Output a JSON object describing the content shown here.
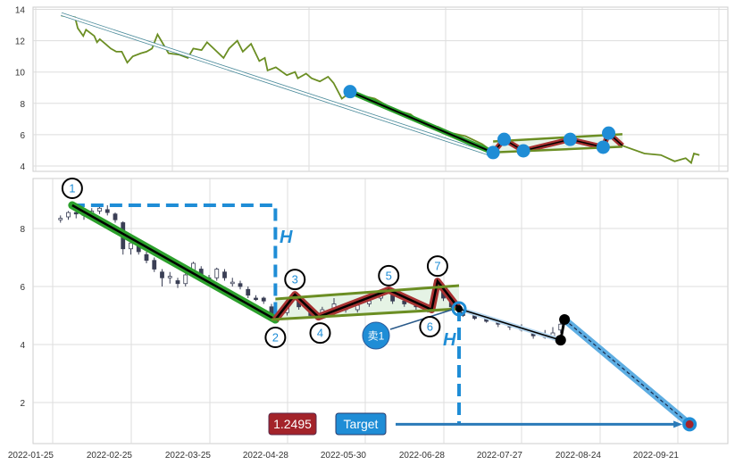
{
  "chart_data": [
    {
      "panel": "overview",
      "type": "line",
      "ylim": [
        4,
        14
      ],
      "yticks": [
        4,
        6,
        8,
        10,
        12,
        14
      ],
      "grid": true,
      "x_unit": "trading-day index",
      "price": [
        [
          -100,
          13.6
        ],
        [
          -95,
          13.5
        ],
        [
          -94,
          12.8
        ],
        [
          -92,
          12.3
        ],
        [
          -91,
          12.7
        ],
        [
          -88,
          12.3
        ],
        [
          -87,
          11.9
        ],
        [
          -86,
          12.1
        ],
        [
          -84,
          11.8
        ],
        [
          -82,
          11.5
        ],
        [
          -80,
          11.3
        ],
        [
          -78,
          11.3
        ],
        [
          -76,
          10.6
        ],
        [
          -74,
          11.0
        ],
        [
          -71,
          11.2
        ],
        [
          -69,
          11.3
        ],
        [
          -67,
          11.5
        ],
        [
          -65,
          12.4
        ],
        [
          -63,
          11.8
        ],
        [
          -61,
          11.2
        ],
        [
          -57,
          11.1
        ],
        [
          -54,
          10.9
        ],
        [
          -52,
          11.5
        ],
        [
          -49,
          11.4
        ],
        [
          -47,
          11.9
        ],
        [
          -44,
          11.4
        ],
        [
          -41,
          10.9
        ],
        [
          -39,
          11.5
        ],
        [
          -36,
          12.0
        ],
        [
          -34,
          11.3
        ],
        [
          -31,
          11.8
        ],
        [
          -28,
          10.7
        ],
        [
          -26,
          10.9
        ],
        [
          -25,
          10.1
        ],
        [
          -22,
          10.3
        ],
        [
          -18,
          9.8
        ],
        [
          -15,
          10.0
        ],
        [
          -14,
          9.6
        ],
        [
          -11,
          9.9
        ],
        [
          -9,
          9.6
        ],
        [
          -6,
          9.4
        ],
        [
          -3,
          9.7
        ],
        [
          -1,
          9.3
        ],
        [
          2,
          8.3
        ],
        [
          5,
          8.7
        ],
        [
          9,
          8.5
        ],
        [
          14,
          8.3
        ],
        [
          21,
          7.6
        ],
        [
          27,
          7.3
        ],
        [
          32,
          6.6
        ],
        [
          37,
          6.5
        ],
        [
          42,
          6.1
        ],
        [
          47,
          5.9
        ],
        [
          53,
          5.4
        ],
        [
          57,
          4.9
        ],
        [
          61,
          5.6
        ],
        [
          68,
          5.0
        ],
        [
          76,
          5.3
        ],
        [
          85,
          5.7
        ],
        [
          97,
          5.2
        ],
        [
          99,
          6.1
        ],
        [
          104,
          5.3
        ],
        [
          112,
          4.8
        ],
        [
          118,
          4.7
        ],
        [
          123,
          4.3
        ],
        [
          127,
          4.5
        ],
        [
          129,
          4.2
        ],
        [
          130,
          4.8
        ],
        [
          132,
          4.7
        ]
      ],
      "trend_arrow": [
        [
          -100,
          13.7
        ],
        [
          56,
          4.75
        ]
      ],
      "pivots": [
        [
          5,
          8.75
        ],
        [
          57,
          4.86
        ],
        [
          61,
          5.7
        ],
        [
          68,
          4.97
        ],
        [
          85,
          5.7
        ],
        [
          97,
          5.2
        ],
        [
          99,
          6.1
        ]
      ]
    },
    {
      "panel": "detail",
      "type": "candlestick",
      "ylim": [
        0.8,
        9.6
      ],
      "yticks": [
        2,
        4,
        6,
        8
      ],
      "grid": true,
      "xticks": [
        "2022-01-25",
        "2022-02-25",
        "2022-03-25",
        "2022-04-28",
        "2022-05-30",
        "2022-06-28",
        "2022-07-27",
        "2022-08-24",
        "2022-09-21"
      ],
      "candles_idx_o_c_h_l": [
        [
          2,
          8.3,
          8.35,
          8.45,
          8.2
        ],
        [
          4,
          8.4,
          8.55,
          8.6,
          8.3
        ],
        [
          6,
          8.55,
          8.5,
          8.65,
          8.35
        ],
        [
          8,
          8.5,
          8.45,
          8.6,
          8.3
        ],
        [
          10,
          8.5,
          8.6,
          8.7,
          8.4
        ],
        [
          12,
          8.6,
          8.7,
          8.75,
          8.5
        ],
        [
          14,
          8.65,
          8.55,
          8.8,
          8.45
        ],
        [
          16,
          8.5,
          8.3,
          8.55,
          8.2
        ],
        [
          18,
          8.2,
          7.3,
          8.25,
          7.1
        ],
        [
          20,
          7.3,
          7.5,
          7.6,
          7.1
        ],
        [
          22,
          7.4,
          7.2,
          7.5,
          7.1
        ],
        [
          24,
          7.1,
          6.9,
          7.2,
          6.8
        ],
        [
          26,
          6.9,
          6.6,
          7.0,
          6.5
        ],
        [
          28,
          6.5,
          6.3,
          6.6,
          6.0
        ],
        [
          30,
          6.3,
          6.35,
          6.5,
          6.1
        ],
        [
          32,
          6.2,
          6.1,
          6.3,
          5.95
        ],
        [
          34,
          6.1,
          6.4,
          6.45,
          6.0
        ],
        [
          36,
          6.5,
          6.8,
          6.85,
          6.3
        ],
        [
          38,
          6.6,
          6.4,
          6.7,
          6.3
        ],
        [
          40,
          6.3,
          6.2,
          6.4,
          6.1
        ],
        [
          42,
          6.3,
          6.6,
          6.65,
          6.2
        ],
        [
          44,
          6.5,
          6.3,
          6.6,
          6.2
        ],
        [
          46,
          6.1,
          6.15,
          6.3,
          6.0
        ],
        [
          48,
          6.1,
          6.0,
          6.2,
          5.9
        ],
        [
          50,
          5.9,
          5.7,
          6.0,
          5.6
        ],
        [
          52,
          5.6,
          5.55,
          5.7,
          5.5
        ],
        [
          54,
          5.6,
          5.5,
          5.65,
          5.4
        ],
        [
          56,
          5.3,
          5.0,
          5.4,
          4.9
        ],
        [
          60,
          5.1,
          5.4,
          5.5,
          5.0
        ],
        [
          63,
          5.5,
          5.3,
          5.7,
          5.2
        ],
        [
          66,
          5.1,
          5.0,
          5.2,
          4.9
        ],
        [
          69,
          5.1,
          5.2,
          5.3,
          5.0
        ],
        [
          72,
          5.2,
          5.4,
          5.6,
          5.1
        ],
        [
          75,
          5.3,
          5.2,
          5.4,
          5.1
        ],
        [
          78,
          5.2,
          5.35,
          5.5,
          5.1
        ],
        [
          81,
          5.4,
          5.5,
          5.6,
          5.3
        ],
        [
          84,
          5.6,
          5.7,
          5.8,
          5.5
        ],
        [
          87,
          5.7,
          5.5,
          5.8,
          5.4
        ],
        [
          90,
          5.5,
          5.4,
          5.6,
          5.3
        ],
        [
          93,
          5.4,
          5.3,
          5.5,
          5.2
        ],
        [
          96,
          5.25,
          5.2,
          5.3,
          5.1
        ],
        [
          98,
          5.8,
          6.1,
          6.2,
          5.7
        ],
        [
          100,
          5.9,
          5.6,
          6.0,
          5.5
        ],
        [
          102,
          5.5,
          5.3,
          5.6,
          5.2
        ],
        [
          105,
          5.15,
          5.0,
          5.2,
          4.95
        ],
        [
          108,
          5.0,
          4.9,
          5.05,
          4.85
        ],
        [
          111,
          4.9,
          4.8,
          4.95,
          4.75
        ],
        [
          114,
          4.75,
          4.7,
          4.85,
          4.6
        ],
        [
          117,
          4.7,
          4.6,
          4.75,
          4.5
        ],
        [
          120,
          4.55,
          4.5,
          4.7,
          4.45
        ],
        [
          123,
          4.4,
          4.3,
          4.5,
          4.2
        ],
        [
          126,
          4.3,
          4.25,
          4.5,
          4.2
        ],
        [
          128,
          4.2,
          4.4,
          4.6,
          4.15
        ],
        [
          130,
          4.5,
          4.7,
          4.8,
          4.4
        ]
      ],
      "pattern_points": [
        {
          "label": "1",
          "idx": 5,
          "value": 8.8
        },
        {
          "label": "2",
          "idx": 57,
          "value": 4.86
        },
        {
          "label": "3",
          "idx": 62,
          "value": 5.72
        },
        {
          "label": "4",
          "idx": 68,
          "value": 4.95
        },
        {
          "label": "5",
          "idx": 86,
          "value": 5.88
        },
        {
          "label": "6",
          "idx": 97,
          "value": 5.2
        },
        {
          "label": "7",
          "idx": 98.5,
          "value": 6.18
        }
      ],
      "channel_upper": [
        [
          57,
          5.57
        ],
        [
          104,
          6.03
        ]
      ],
      "channel_lower": [
        [
          56,
          4.86
        ],
        [
          104,
          5.23
        ]
      ],
      "sell_point": {
        "label": "卖1",
        "idx": 104,
        "value": 5.23
      },
      "projection": [
        [
          104,
          5.23
        ],
        [
          130,
          4.15
        ],
        [
          131,
          4.86
        ],
        [
          163,
          1.2495
        ]
      ],
      "height_label": "H",
      "target_value_label": "1.2495",
      "target_label": "Target",
      "target_value": 1.2495
    }
  ],
  "colors": {
    "price_line": "#6b8e23",
    "pivot_dot": "#1f8dd6",
    "down_leg": "#2ca02c",
    "zigzag": "#a83232",
    "channel": "#6b8e23",
    "channel_fill": "#dff0df",
    "projection": "#5dade2",
    "dashed_h": "#1f8dd6",
    "target_badge": "#1f8dd6",
    "value_badge": "#a3232a",
    "candle": "#3a3f55"
  }
}
